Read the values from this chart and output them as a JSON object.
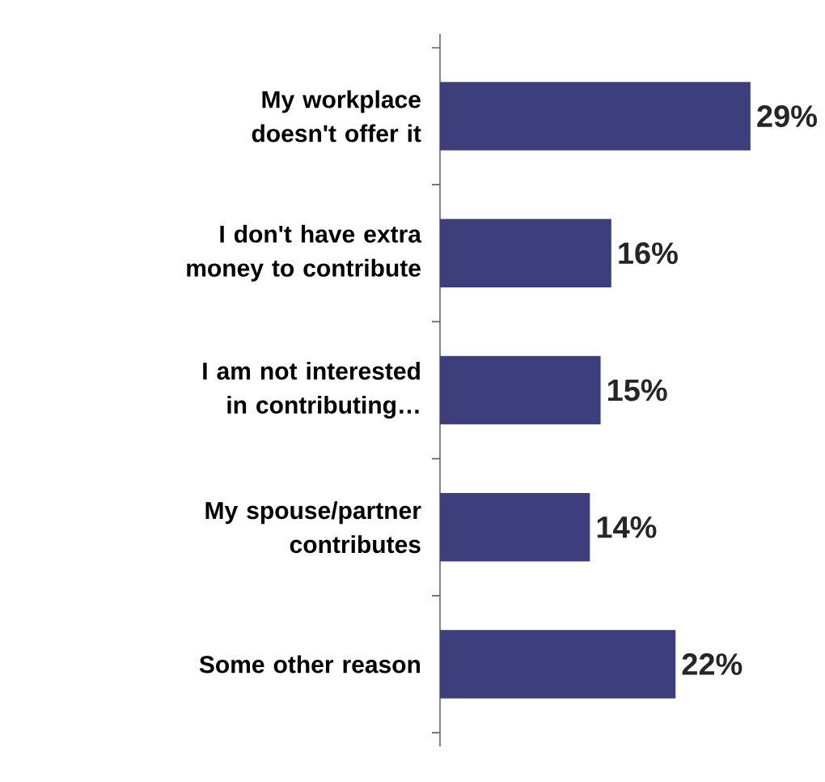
{
  "chart_data": {
    "type": "bar",
    "orientation": "horizontal",
    "categories": [
      "My workplace doesn't offer it",
      "I don't have extra money to contribute",
      "I am not interested in contributing…",
      "My spouse/partner contributes",
      "Some other reason"
    ],
    "values": [
      29,
      16,
      15,
      14,
      22
    ],
    "value_labels": [
      "29%",
      "16%",
      "15%",
      "14%",
      "22%"
    ],
    "color": "#3c3f7b"
  }
}
